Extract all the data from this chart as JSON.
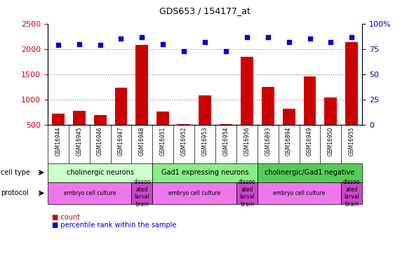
{
  "title": "GDS653 / 154177_at",
  "samples": [
    "GSM16944",
    "GSM16945",
    "GSM16946",
    "GSM16947",
    "GSM16948",
    "GSM16951",
    "GSM16952",
    "GSM16953",
    "GSM16954",
    "GSM16956",
    "GSM16893",
    "GSM16894",
    "GSM16949",
    "GSM16950",
    "GSM16955"
  ],
  "counts": [
    720,
    780,
    700,
    1240,
    2080,
    760,
    510,
    1080,
    510,
    1840,
    1250,
    820,
    1460,
    1040,
    2140
  ],
  "percentiles": [
    79,
    80,
    79,
    85,
    87,
    80,
    73,
    82,
    73,
    87,
    87,
    82,
    85,
    82,
    87
  ],
  "ylim_left": [
    500,
    2500
  ],
  "ylim_right": [
    0,
    100
  ],
  "yticks_left": [
    500,
    1000,
    1500,
    2000,
    2500
  ],
  "yticks_right": [
    0,
    25,
    50,
    75,
    100
  ],
  "bar_color": "#cc0000",
  "dot_color": "#0000cc",
  "grid_lines": [
    1000,
    1500,
    2000
  ],
  "cell_type_groups": [
    {
      "label": "cholinergic neurons",
      "start": 0,
      "end": 5,
      "color": "#ccffcc"
    },
    {
      "label": "Gad1 expressing neurons",
      "start": 5,
      "end": 10,
      "color": "#88ee88"
    },
    {
      "label": "cholinergic/Gad1 negative",
      "start": 10,
      "end": 15,
      "color": "#55cc55"
    }
  ],
  "protocol_groups": [
    {
      "label": "embryo cell culture",
      "start": 0,
      "end": 4,
      "color": "#ee77ee"
    },
    {
      "label": "dissoo\nated\nlarval\nbrain",
      "start": 4,
      "end": 5,
      "color": "#cc44cc"
    },
    {
      "label": "embryo cell culture",
      "start": 5,
      "end": 9,
      "color": "#ee77ee"
    },
    {
      "label": "dissoo\nated\nlarval\nbrain",
      "start": 9,
      "end": 10,
      "color": "#cc44cc"
    },
    {
      "label": "embryo cell culture",
      "start": 10,
      "end": 14,
      "color": "#ee77ee"
    },
    {
      "label": "dissoo\nated\nlarval\nbrain",
      "start": 14,
      "end": 15,
      "color": "#cc44cc"
    }
  ],
  "axis_color_left": "#cc0000",
  "axis_color_right": "#0000cc",
  "xtick_bg_color": "#cccccc",
  "cell_type_label": "cell type",
  "protocol_label": "protocol",
  "legend_count_label": "count",
  "legend_pct_label": "percentile rank within the sample"
}
